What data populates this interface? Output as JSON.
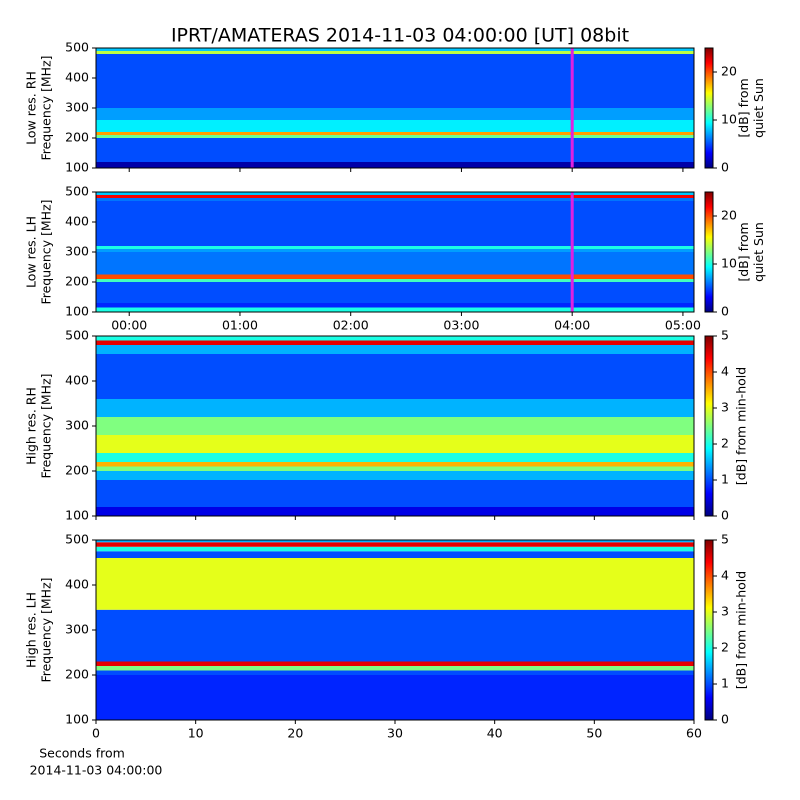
{
  "title": "IPRT/AMATERAS 2014-11-03 04:00:00 [UT]   08bit",
  "chart_data": [
    {
      "type": "heatmap",
      "ylabel": [
        "Low res. RH",
        "Frequency [MHz]"
      ],
      "ylim": [
        100,
        500
      ],
      "yticks": [
        100,
        200,
        300,
        400,
        500
      ],
      "xlim": [
        -0.3,
        5.1
      ],
      "freq_bins": [
        100,
        120,
        200,
        210,
        220,
        260,
        300,
        480,
        490,
        500
      ],
      "levels": [
        1,
        5,
        12,
        18,
        9,
        7,
        5,
        14,
        8
      ],
      "clim": [
        0,
        25
      ],
      "cticks": [
        0,
        10,
        20
      ],
      "clabel": [
        "[dB] from",
        "quiet Sun"
      ],
      "marker_x": 4,
      "marker_color": "#e020e0"
    },
    {
      "type": "heatmap",
      "ylabel": [
        "Low res. LH",
        "Frequency [MHz]"
      ],
      "ylim": [
        100,
        500
      ],
      "yticks": [
        100,
        200,
        300,
        400,
        500
      ],
      "xlim": [
        -0.3,
        5.1
      ],
      "xticks": [
        {
          "value": 0,
          "label": "00:00"
        },
        {
          "value": 1,
          "label": "01:00"
        },
        {
          "value": 2,
          "label": "02:00"
        },
        {
          "value": 3,
          "label": "03:00"
        },
        {
          "value": 4,
          "label": "04:00"
        },
        {
          "value": 5,
          "label": "05:00"
        }
      ],
      "freq_bins": [
        100,
        115,
        130,
        200,
        210,
        225,
        300,
        310,
        320,
        470,
        480,
        490,
        500
      ],
      "levels": [
        10,
        4,
        5,
        11,
        20,
        6,
        7,
        10,
        5,
        6,
        22,
        8
      ],
      "clim": [
        0,
        25
      ],
      "cticks": [
        0,
        10,
        20
      ],
      "clabel": [
        "[dB] from",
        "quiet Sun"
      ],
      "marker_x": 4,
      "marker_color": "#e020e0"
    },
    {
      "type": "heatmap",
      "ylabel": [
        "High res. RH",
        "Frequency [MHz]"
      ],
      "ylim": [
        100,
        500
      ],
      "yticks": [
        100,
        200,
        300,
        400,
        500
      ],
      "xlim": [
        0,
        60
      ],
      "freq_bins": [
        100,
        120,
        180,
        200,
        210,
        220,
        240,
        280,
        320,
        360,
        460,
        480,
        490,
        500
      ],
      "levels": [
        0.5,
        1,
        1.5,
        2.5,
        3.5,
        2,
        3,
        2.5,
        1.5,
        1,
        1.5,
        4.5,
        2
      ],
      "clim": [
        0,
        5
      ],
      "cticks": [
        0,
        1,
        2,
        3,
        4,
        5
      ],
      "clabel": [
        "[dB] from min-hold"
      ]
    },
    {
      "type": "heatmap",
      "ylabel": [
        "High res. LH",
        "Frequency [MHz]"
      ],
      "ylim": [
        100,
        500
      ],
      "yticks": [
        100,
        200,
        300,
        400,
        500
      ],
      "xlim": [
        0,
        60
      ],
      "xticks": [
        0,
        10,
        20,
        30,
        40,
        50,
        60
      ],
      "xlabel": [
        "Seconds from",
        "2014-11-03 04:00:00"
      ],
      "freq_bins": [
        100,
        200,
        210,
        220,
        230,
        320,
        345,
        460,
        475,
        485,
        495,
        500
      ],
      "levels": [
        0.8,
        1,
        2.5,
        4.5,
        1,
        1,
        3,
        1,
        2,
        4.5,
        1.5
      ],
      "clim": [
        0,
        5
      ],
      "cticks": [
        0,
        1,
        2,
        3,
        4,
        5
      ],
      "clabel": [
        "[dB] from min-hold"
      ]
    }
  ]
}
